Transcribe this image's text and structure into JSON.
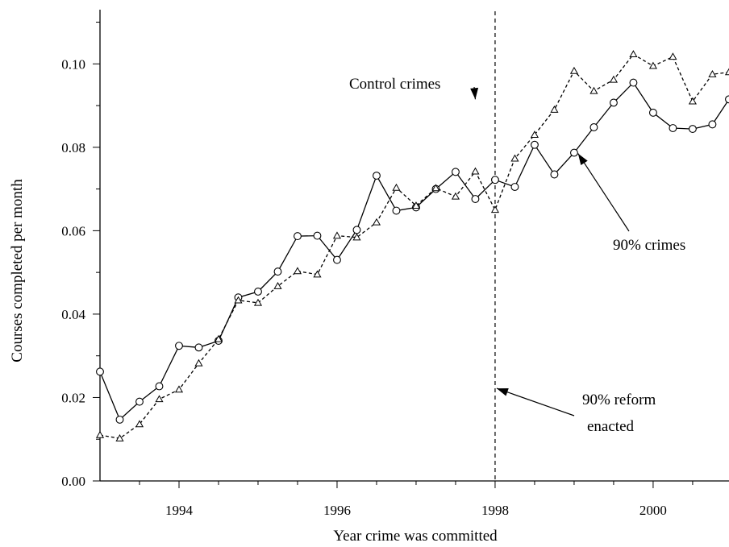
{
  "chart_data": {
    "type": "line",
    "xlabel": "Year crime was committed",
    "ylabel": "Courses completed per month",
    "xlim": [
      1993.0,
      2000.96
    ],
    "ylim": [
      0.0,
      0.113
    ],
    "x_ticks": [
      {
        "value": 1994,
        "label": "1994"
      },
      {
        "value": 1996,
        "label": "1996"
      },
      {
        "value": 1998,
        "label": "1998"
      },
      {
        "value": 2000,
        "label": "2000"
      }
    ],
    "y_ticks": [
      {
        "value": 0.0,
        "label": "0.00"
      },
      {
        "value": 0.02,
        "label": "0.02"
      },
      {
        "value": 0.04,
        "label": "0.04"
      },
      {
        "value": 0.06,
        "label": "0.06"
      },
      {
        "value": 0.08,
        "label": "0.08"
      },
      {
        "value": 0.1,
        "label": "0.10"
      }
    ],
    "grid": false,
    "series": [
      {
        "key": "ninety",
        "marker": "circle",
        "line": "solid",
        "color": "#000000",
        "x": [
          1993.0,
          1993.25,
          1993.5,
          1993.75,
          1994.0,
          1994.25,
          1994.5,
          1994.75,
          1995.0,
          1995.25,
          1995.5,
          1995.75,
          1996.0,
          1996.25,
          1996.5,
          1996.75,
          1997.0,
          1997.25,
          1997.5,
          1997.75,
          1998.0,
          1998.25,
          1998.5,
          1998.75,
          1999.0,
          1999.25,
          1999.5,
          1999.75,
          2000.0,
          2000.25,
          2000.5,
          2000.75,
          2000.96
        ],
        "y": [
          0.0262,
          0.0147,
          0.019,
          0.0227,
          0.0324,
          0.032,
          0.0336,
          0.044,
          0.0454,
          0.0502,
          0.0587,
          0.0588,
          0.053,
          0.0602,
          0.0732,
          0.0648,
          0.0656,
          0.07,
          0.0741,
          0.0676,
          0.0722,
          0.0705,
          0.0806,
          0.0735,
          0.0787,
          0.0848,
          0.0907,
          0.0955,
          0.0883,
          0.0846,
          0.0844,
          0.0855,
          0.0915
        ]
      },
      {
        "key": "control",
        "marker": "triangle",
        "line": "dashed",
        "color": "#000000",
        "x": [
          1993.0,
          1993.25,
          1993.5,
          1993.75,
          1994.0,
          1994.25,
          1994.5,
          1994.75,
          1995.0,
          1995.25,
          1995.5,
          1995.75,
          1996.0,
          1996.25,
          1996.5,
          1996.75,
          1997.0,
          1997.25,
          1997.5,
          1997.75,
          1998.0,
          1998.25,
          1998.5,
          1998.75,
          1999.0,
          1999.25,
          1999.5,
          1999.75,
          2000.0,
          2000.25,
          2000.5,
          2000.75,
          2000.96
        ],
        "y": [
          0.011,
          0.0102,
          0.0136,
          0.0196,
          0.0219,
          0.0282,
          0.034,
          0.0433,
          0.0427,
          0.0467,
          0.0503,
          0.0495,
          0.0588,
          0.0584,
          0.062,
          0.0703,
          0.066,
          0.0702,
          0.0682,
          0.0742,
          0.065,
          0.0773,
          0.083,
          0.089,
          0.0983,
          0.0935,
          0.0962,
          0.1023,
          0.0995,
          0.1017,
          0.091,
          0.0975,
          0.098
        ]
      }
    ],
    "reference_line": {
      "x": 1998.0,
      "style": "dashed"
    },
    "annotations": [
      {
        "key": "control_label",
        "text": "Control crimes",
        "arrow_to": [
          1997.75,
          0.0915
        ]
      },
      {
        "key": "ninety_label",
        "text": "90% crimes",
        "arrow_to": [
          1999.05,
          0.0785
        ]
      },
      {
        "key": "reform_label_1",
        "text": "90% reform"
      },
      {
        "key": "reform_label_2",
        "text": "enacted",
        "arrow_to": [
          1998.02,
          0.0222
        ]
      }
    ]
  }
}
